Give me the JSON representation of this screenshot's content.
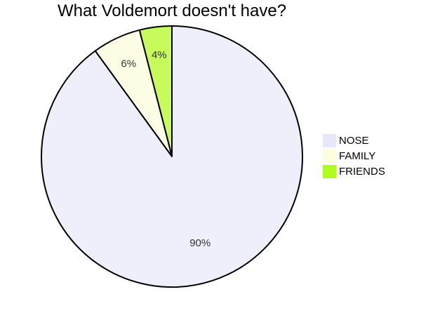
{
  "chart_data": {
    "type": "pie",
    "title": "What Voldemort doesn't have?",
    "categories": [
      "NOSE",
      "FAMILY",
      "FRIENDS"
    ],
    "values": [
      90,
      6,
      4
    ],
    "value_labels": [
      "90%",
      "6%",
      "4%"
    ],
    "colors": [
      "#efeffc",
      "#fdfde6",
      "#c7fa5b"
    ],
    "legend_colors": [
      "#e7e7fb",
      "#fdfde0",
      "#adfd1f"
    ],
    "outline_color": "#000000",
    "legend_position": "right",
    "start_angle": "12 o'clock",
    "direction": "clockwise"
  }
}
